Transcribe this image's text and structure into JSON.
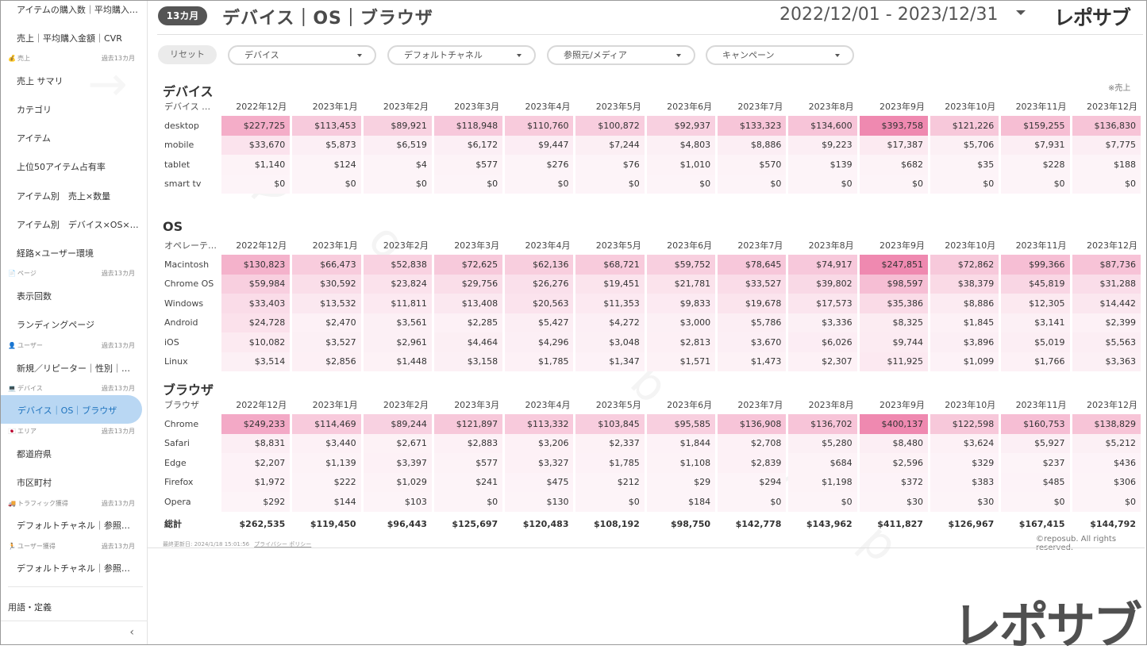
{
  "sidebar": {
    "items_top": [
      {
        "label": "アイテムの購入数｜平均購入…"
      },
      {
        "label": "売上｜平均購入金額｜CVR"
      }
    ],
    "sections": [
      {
        "name": "売上",
        "period": "過去13カ月",
        "icon": "money-bag-icon",
        "glyph": "💰",
        "items": [
          "売上 サマリ",
          "カテゴリ",
          "アイテム",
          "上位50アイテム占有率",
          "アイテム別　売上×数量",
          "アイテム別　デバイス×OS×…",
          "経路×ユーザー環境"
        ]
      },
      {
        "name": "ページ",
        "period": "過去13カ月",
        "icon": "page-icon",
        "glyph": "📄",
        "items": [
          "表示回数",
          "ランディングページ"
        ]
      },
      {
        "name": "ユーザー",
        "period": "過去13カ月",
        "icon": "user-icon",
        "glyph": "👤",
        "items": [
          "新規／リピーター｜性別｜…"
        ]
      },
      {
        "name": "デバイス",
        "period": "過去13カ月",
        "icon": "computer-icon",
        "glyph": "💻",
        "items": [
          "デバイス｜OS｜ブラウザ"
        ]
      },
      {
        "name": "エリア",
        "period": "過去13カ月",
        "icon": "flag-icon",
        "glyph": "🇯🇵",
        "items": [
          "都道府県",
          "市区町村"
        ]
      },
      {
        "name": "トラフィック獲得",
        "period": "過去13カ月",
        "icon": "truck-icon",
        "glyph": "🚚",
        "items": [
          "デフォルトチャネル｜参照…"
        ]
      },
      {
        "name": "ユーザー獲得",
        "period": "過去13カ月",
        "icon": "runner-icon",
        "glyph": "🏃",
        "items": [
          "デフォルトチャネル｜参照…"
        ]
      }
    ],
    "glossary": "用語・定義",
    "collapse_glyph": "‹"
  },
  "header": {
    "period_badge": "13カ月",
    "title": "デバイス｜OS｜ブラウザ",
    "date_range": "2022/12/01 - 2023/12/31",
    "logo": "レポサブ"
  },
  "filters": {
    "reset": "リセット",
    "dropdowns": [
      "デバイス",
      "デフォルトチャネル",
      "参照元/メディア",
      "キャンペーン"
    ]
  },
  "note": "※売上",
  "months": [
    "2022年12月",
    "2023年1月",
    "2023年2月",
    "2023年3月",
    "2023年4月",
    "2023年5月",
    "2023年6月",
    "2023年7月",
    "2023年8月",
    "2023年9月",
    "2023年10月",
    "2023年11月",
    "2023年12月"
  ],
  "tables": [
    {
      "title": "デバイス",
      "first_col": "デバイス …",
      "rows": [
        {
          "label": "desktop",
          "values": [
            "$227,725",
            "$113,453",
            "$89,921",
            "$118,948",
            "$110,760",
            "$100,872",
            "$92,937",
            "$133,323",
            "$134,600",
            "$393,758",
            "$121,226",
            "$159,255",
            "$136,830"
          ],
          "nums": [
            227725,
            113453,
            89921,
            118948,
            110760,
            100872,
            92937,
            133323,
            134600,
            393758,
            121226,
            159255,
            136830
          ]
        },
        {
          "label": "mobile",
          "values": [
            "$33,670",
            "$5,873",
            "$6,519",
            "$6,172",
            "$9,447",
            "$7,244",
            "$4,803",
            "$8,886",
            "$9,223",
            "$17,387",
            "$5,706",
            "$7,931",
            "$7,775"
          ],
          "nums": [
            33670,
            5873,
            6519,
            6172,
            9447,
            7244,
            4803,
            8886,
            9223,
            17387,
            5706,
            7931,
            7775
          ]
        },
        {
          "label": "tablet",
          "values": [
            "$1,140",
            "$124",
            "$4",
            "$577",
            "$276",
            "$76",
            "$1,010",
            "$570",
            "$139",
            "$682",
            "$35",
            "$228",
            "$188"
          ],
          "nums": [
            1140,
            124,
            4,
            577,
            276,
            76,
            1010,
            570,
            139,
            682,
            35,
            228,
            188
          ]
        },
        {
          "label": "smart tv",
          "values": [
            "$0",
            "$0",
            "$0",
            "$0",
            "$0",
            "$0",
            "$0",
            "$0",
            "$0",
            "$0",
            "$0",
            "$0",
            "$0"
          ],
          "nums": [
            0,
            0,
            0,
            0,
            0,
            0,
            0,
            0,
            0,
            0,
            0,
            0,
            0
          ]
        }
      ]
    },
    {
      "title": "OS",
      "first_col": "オペレーテ…",
      "rows": [
        {
          "label": "Macintosh",
          "values": [
            "$130,823",
            "$66,473",
            "$52,838",
            "$72,625",
            "$62,136",
            "$68,721",
            "$59,752",
            "$78,645",
            "$74,917",
            "$247,851",
            "$72,862",
            "$99,366",
            "$87,736"
          ],
          "nums": [
            130823,
            66473,
            52838,
            72625,
            62136,
            68721,
            59752,
            78645,
            74917,
            247851,
            72862,
            99366,
            87736
          ]
        },
        {
          "label": "Chrome OS",
          "values": [
            "$59,984",
            "$30,592",
            "$23,824",
            "$29,756",
            "$26,276",
            "$19,451",
            "$21,781",
            "$33,527",
            "$39,802",
            "$98,597",
            "$38,379",
            "$45,819",
            "$31,288"
          ],
          "nums": [
            59984,
            30592,
            23824,
            29756,
            26276,
            19451,
            21781,
            33527,
            39802,
            98597,
            38379,
            45819,
            31288
          ]
        },
        {
          "label": "Windows",
          "values": [
            "$33,403",
            "$13,532",
            "$11,811",
            "$13,408",
            "$20,563",
            "$11,353",
            "$9,833",
            "$19,678",
            "$17,573",
            "$35,386",
            "$8,886",
            "$12,305",
            "$14,442"
          ],
          "nums": [
            33403,
            13532,
            11811,
            13408,
            20563,
            11353,
            9833,
            19678,
            17573,
            35386,
            8886,
            12305,
            14442
          ]
        },
        {
          "label": "Android",
          "values": [
            "$24,728",
            "$2,470",
            "$3,561",
            "$2,285",
            "$5,427",
            "$4,272",
            "$3,000",
            "$5,786",
            "$3,336",
            "$8,325",
            "$1,845",
            "$3,141",
            "$2,399"
          ],
          "nums": [
            24728,
            2470,
            3561,
            2285,
            5427,
            4272,
            3000,
            5786,
            3336,
            8325,
            1845,
            3141,
            2399
          ]
        },
        {
          "label": "iOS",
          "values": [
            "$10,082",
            "$3,527",
            "$2,961",
            "$4,464",
            "$4,296",
            "$3,048",
            "$2,813",
            "$3,670",
            "$6,026",
            "$9,744",
            "$3,896",
            "$5,019",
            "$5,563"
          ],
          "nums": [
            10082,
            3527,
            2961,
            4464,
            4296,
            3048,
            2813,
            3670,
            6026,
            9744,
            3896,
            5019,
            5563
          ]
        },
        {
          "label": "Linux",
          "values": [
            "$3,514",
            "$2,856",
            "$1,448",
            "$3,158",
            "$1,785",
            "$1,347",
            "$1,571",
            "$1,473",
            "$2,307",
            "$11,925",
            "$1,099",
            "$1,766",
            "$3,363"
          ],
          "nums": [
            3514,
            2856,
            1448,
            3158,
            1785,
            1347,
            1571,
            1473,
            2307,
            11925,
            1099,
            1766,
            3363
          ]
        }
      ]
    },
    {
      "title": "ブラウザ",
      "first_col": "ブラウザ",
      "rows": [
        {
          "label": "Chrome",
          "values": [
            "$249,233",
            "$114,469",
            "$89,244",
            "$121,897",
            "$113,332",
            "$103,845",
            "$95,585",
            "$136,908",
            "$136,702",
            "$400,137",
            "$122,598",
            "$160,753",
            "$138,829"
          ],
          "nums": [
            249233,
            114469,
            89244,
            121897,
            113332,
            103845,
            95585,
            136908,
            136702,
            400137,
            122598,
            160753,
            138829
          ]
        },
        {
          "label": "Safari",
          "values": [
            "$8,831",
            "$3,440",
            "$2,671",
            "$2,883",
            "$3,206",
            "$2,337",
            "$1,844",
            "$2,708",
            "$5,280",
            "$8,480",
            "$3,624",
            "$5,927",
            "$5,212"
          ],
          "nums": [
            8831,
            3440,
            2671,
            2883,
            3206,
            2337,
            1844,
            2708,
            5280,
            8480,
            3624,
            5927,
            5212
          ]
        },
        {
          "label": "Edge",
          "values": [
            "$2,207",
            "$1,139",
            "$3,397",
            "$577",
            "$3,327",
            "$1,785",
            "$1,108",
            "$2,839",
            "$684",
            "$2,596",
            "$329",
            "$237",
            "$436"
          ],
          "nums": [
            2207,
            1139,
            3397,
            577,
            3327,
            1785,
            1108,
            2839,
            684,
            2596,
            329,
            237,
            436
          ]
        },
        {
          "label": "Firefox",
          "values": [
            "$1,972",
            "$222",
            "$1,029",
            "$241",
            "$475",
            "$212",
            "$29",
            "$294",
            "$1,198",
            "$372",
            "$383",
            "$485",
            "$306"
          ],
          "nums": [
            1972,
            222,
            1029,
            241,
            475,
            212,
            29,
            294,
            1198,
            372,
            383,
            485,
            306
          ]
        },
        {
          "label": "Opera",
          "values": [
            "$292",
            "$144",
            "$103",
            "$0",
            "$130",
            "$0",
            "$184",
            "$0",
            "$0",
            "$30",
            "$30",
            "$0",
            "$0"
          ],
          "nums": [
            292,
            144,
            103,
            0,
            130,
            0,
            184,
            0,
            0,
            30,
            30,
            0,
            0
          ]
        }
      ],
      "total": {
        "label": "総計",
        "values": [
          "$262,535",
          "$119,450",
          "$96,443",
          "$125,697",
          "$120,483",
          "$108,192",
          "$98,750",
          "$142,778",
          "$143,962",
          "$411,827",
          "$126,967",
          "$167,415",
          "$144,792"
        ]
      }
    }
  ],
  "heat_color": {
    "max": "#ef89b0",
    "min": "#fdf4f8"
  },
  "footer": {
    "updated": "最終更新日: 2024/1/18 15:01:56",
    "privacy": "プライバシー ポリシー",
    "copyright": "©reposub. All rights reserved."
  },
  "logo_big": "レポサブ"
}
